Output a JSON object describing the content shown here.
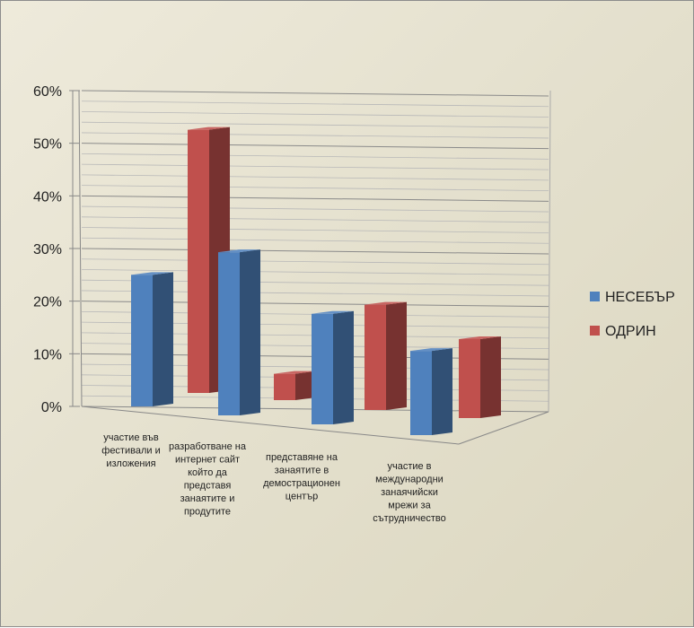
{
  "chart_data": {
    "type": "bar",
    "categories": [
      [
        "участие във",
        "фестивали и",
        "изложения"
      ],
      [
        "разработване на",
        "интернет сайт",
        "който да",
        "представя",
        "занаятите  и",
        "продутите"
      ],
      [
        "представяне  на",
        "занаятите в",
        "демострационен",
        "център"
      ],
      [
        "участие в",
        "международни",
        "занаячийски",
        "мрежи за",
        "сътрудничество"
      ]
    ],
    "series": [
      {
        "name": "НЕСЕБЪР",
        "values": [
          0.25,
          0.31,
          0.21,
          0.16
        ],
        "color": "#4f81bd"
      },
      {
        "name": "ОДРИН",
        "values": [
          0.5,
          0.05,
          0.2,
          0.15
        ],
        "color": "#c0504d"
      }
    ],
    "ylim": [
      0,
      0.6
    ],
    "yticks": [
      "0%",
      "10%",
      "20%",
      "30%",
      "40%",
      "50%",
      "60%"
    ],
    "legend_position": "right",
    "grid": true,
    "style": "3d-columns"
  }
}
